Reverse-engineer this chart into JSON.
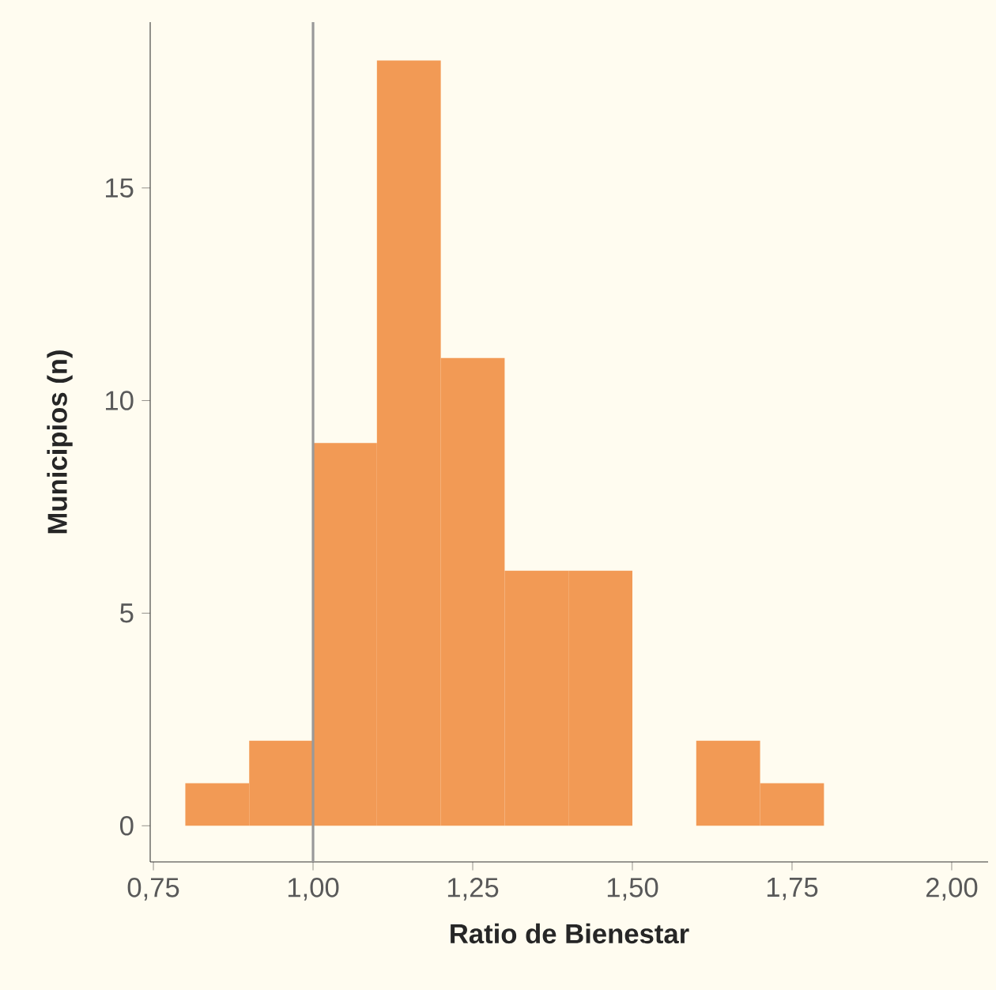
{
  "chart_data": {
    "type": "histogram",
    "xlabel": "Ratio de Bienestar",
    "ylabel": "Municipios (n)",
    "bins": [
      0.8,
      0.9,
      1.0,
      1.1,
      1.2,
      1.3,
      1.4,
      1.5,
      1.6,
      1.7,
      1.8
    ],
    "values": [
      1,
      2,
      9,
      18,
      11,
      6,
      6,
      0,
      2,
      1
    ],
    "color": "#f29a55",
    "xlim": [
      0.745,
      2.057
    ],
    "ylim": [
      -0.85,
      18.9
    ],
    "xticks": [
      {
        "value": 0.75,
        "label": "0,75"
      },
      {
        "value": 1.0,
        "label": "1,00"
      },
      {
        "value": 1.25,
        "label": "1,25"
      },
      {
        "value": 1.5,
        "label": "1,50"
      },
      {
        "value": 1.75,
        "label": "1,75"
      },
      {
        "value": 2.0,
        "label": "2,00"
      }
    ],
    "yticks": [
      0,
      5,
      10,
      15
    ],
    "ref_lines": [
      {
        "axis": "x",
        "value": 1.0,
        "color": "#999999"
      }
    ],
    "grid": false
  }
}
